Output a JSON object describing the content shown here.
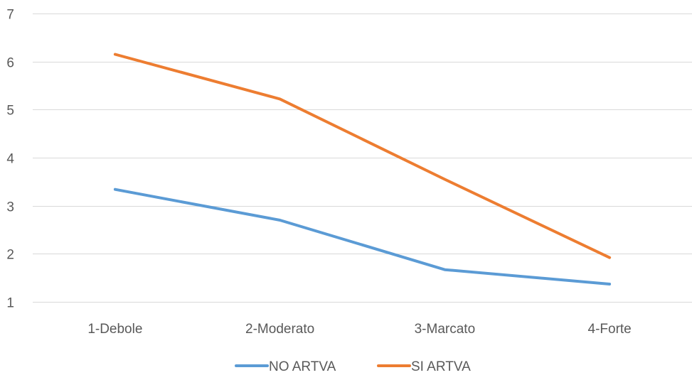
{
  "chart_data": {
    "type": "line",
    "categories": [
      "1-Debole",
      "2-Moderato",
      "3-Marcato",
      "4-Forte"
    ],
    "series": [
      {
        "name": "NO ARTVA",
        "values": [
          3.34,
          2.7,
          1.67,
          1.37
        ],
        "color": "#5b9bd5"
      },
      {
        "name": "SI ARTVA",
        "values": [
          6.15,
          5.22,
          3.55,
          1.92
        ],
        "color": "#ed7d31"
      }
    ],
    "title": "",
    "xlabel": "",
    "ylabel": "",
    "ylim": [
      1,
      7
    ],
    "yticks": [
      1,
      2,
      3,
      4,
      5,
      6,
      7
    ],
    "grid": true,
    "legend": "bottom"
  }
}
